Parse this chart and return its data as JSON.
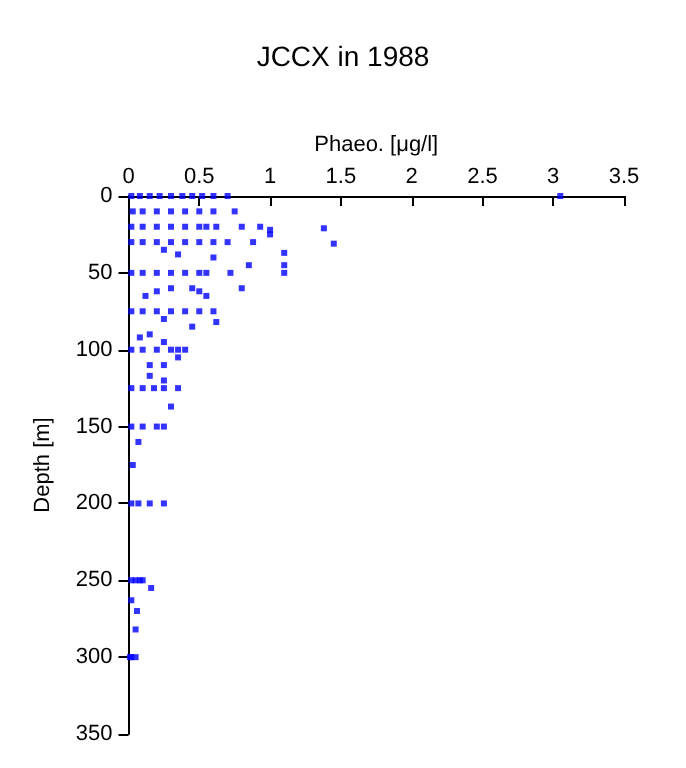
{
  "chart_data": {
    "type": "scatter",
    "title": "JCCX in 1988",
    "xlabel": "Phaeo. [μg/l]",
    "ylabel": "Depth [m]",
    "xlim": [
      0,
      3.5
    ],
    "xticks": [
      0,
      0.5,
      1,
      1.5,
      2,
      2.5,
      3,
      3.5
    ],
    "ylim": [
      350,
      0
    ],
    "yticks": [
      0,
      50,
      100,
      150,
      200,
      250,
      300,
      350
    ],
    "grid": false,
    "marker": "square",
    "series": [
      {
        "color": "#0000ff",
        "x": [
          0.02,
          0.08,
          0.15,
          0.22,
          0.3,
          0.38,
          0.45,
          0.52,
          0.6,
          0.7,
          3.05,
          0.03,
          0.1,
          0.2,
          0.3,
          0.4,
          0.5,
          0.6,
          0.75,
          0.02,
          0.1,
          0.2,
          0.3,
          0.4,
          0.5,
          0.55,
          0.62,
          0.8,
          0.93,
          1.0,
          1.38,
          0.02,
          0.1,
          0.2,
          0.3,
          0.4,
          0.5,
          0.6,
          0.7,
          0.88,
          1.0,
          1.45,
          0.25,
          0.35,
          0.6,
          0.85,
          1.1,
          1.1,
          1.1,
          0.02,
          0.1,
          0.2,
          0.3,
          0.4,
          0.5,
          0.55,
          0.72,
          0.8,
          0.12,
          0.2,
          0.3,
          0.45,
          0.5,
          0.55,
          0.02,
          0.1,
          0.2,
          0.3,
          0.4,
          0.5,
          0.6,
          0.25,
          0.45,
          0.62,
          0.08,
          0.15,
          0.25,
          0.02,
          0.1,
          0.2,
          0.3,
          0.35,
          0.4,
          0.15,
          0.25,
          0.35,
          0.15,
          0.25,
          0.02,
          0.1,
          0.18,
          0.25,
          0.35,
          0.3,
          0.02,
          0.1,
          0.2,
          0.25,
          0.07,
          0.02,
          0.07,
          0.15,
          0.25,
          0.03,
          0.02,
          0.05,
          0.08,
          0.1,
          0.16,
          0.02,
          0.06,
          0.05,
          0.01,
          0.02,
          0.05
        ],
        "values": [
          0,
          0,
          0,
          0,
          0,
          0,
          0,
          0,
          0,
          0,
          0,
          10,
          10,
          10,
          10,
          10,
          10,
          10,
          10,
          20,
          20,
          20,
          20,
          20,
          20,
          20,
          20,
          20,
          20,
          22,
          21,
          30,
          30,
          30,
          30,
          30,
          30,
          30,
          30,
          30,
          25,
          31,
          35,
          38,
          40,
          45,
          37,
          45,
          50,
          50,
          50,
          50,
          50,
          50,
          50,
          50,
          50,
          60,
          65,
          62,
          60,
          60,
          62,
          65,
          75,
          75,
          75,
          75,
          75,
          75,
          75,
          80,
          85,
          82,
          92,
          90,
          95,
          100,
          100,
          100,
          100,
          100,
          100,
          110,
          110,
          105,
          117,
          120,
          125,
          125,
          125,
          125,
          125,
          137,
          150,
          150,
          150,
          150,
          160,
          200,
          200,
          200,
          200,
          175,
          250,
          250,
          250,
          250,
          255,
          263,
          270,
          282,
          300,
          300,
          300
        ]
      }
    ]
  }
}
